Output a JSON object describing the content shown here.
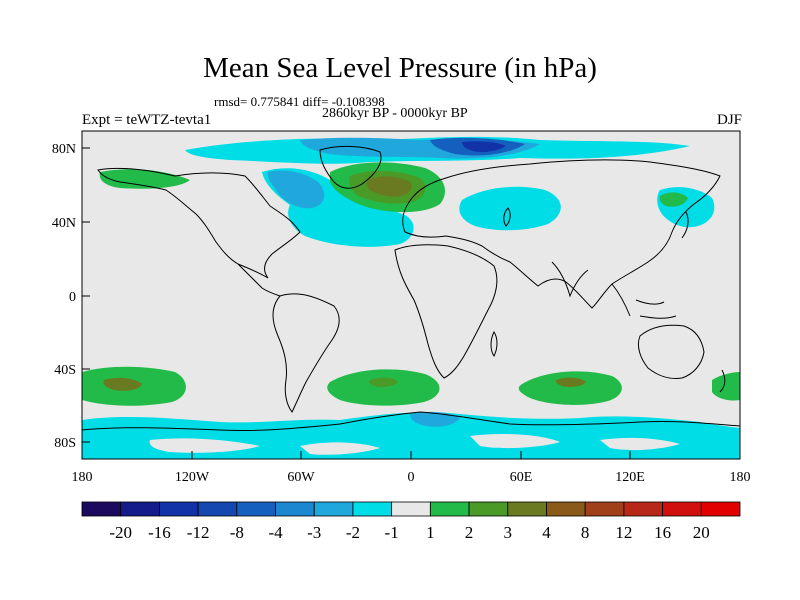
{
  "title": "Mean Sea Level Pressure (in hPa)",
  "stats": "rmsd= 0.775841  diff= -0.108398",
  "period": "2860kyr BP - 0000kyr BP",
  "experiment": "Expt = teWTZ-tevta1",
  "season": "DJF",
  "axes": {
    "lat_labels": [
      "80N",
      "40N",
      "0",
      "40S",
      "80S"
    ],
    "lon_labels": [
      "180",
      "120W",
      "60W",
      "0",
      "60E",
      "120E",
      "180"
    ]
  },
  "colorbar": {
    "labels": [
      "-20",
      "-16",
      "-12",
      "-8",
      "-4",
      "-3",
      "-2",
      "-1",
      "1",
      "2",
      "3",
      "4",
      "8",
      "12",
      "16",
      "20"
    ],
    "colors": [
      "#1b0a5e",
      "#141c8c",
      "#1232a8",
      "#1547b0",
      "#155fbf",
      "#1a87d0",
      "#20a8dd",
      "#00dde6",
      "#e8e8e8",
      "#22bb4a",
      "#4a9a28",
      "#6a7a20",
      "#8a5a18",
      "#a0401a",
      "#b82818",
      "#d0100e",
      "#e00000"
    ]
  },
  "colors": {
    "background": "#e8e8e8",
    "coast": "#000000",
    "pos_weak": "#22bb4a",
    "pos_mid": "#4a9a28",
    "pos_strong": "#6a7a20",
    "neg_weak": "#00dde6",
    "neg_mid": "#20a8dd",
    "neg_strong": "#155fbf",
    "neg_deep": "#1232a8"
  }
}
